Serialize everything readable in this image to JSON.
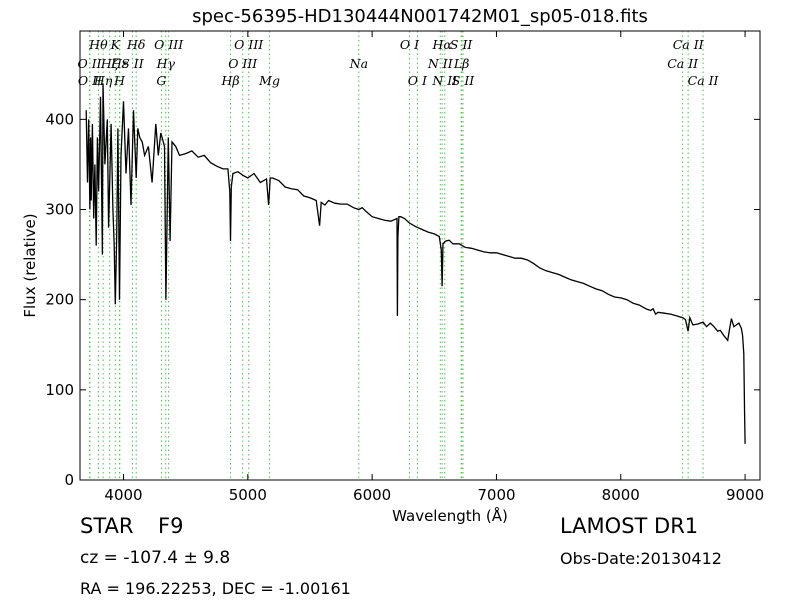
{
  "header": {
    "title": "spec-56395-HD130444N001742M01_sp05-018.fits"
  },
  "info": {
    "object_class": "STAR",
    "subclass": "F9",
    "survey": "LAMOST DR1",
    "redshift_text": "cz = -107.4  ± 9.8",
    "obs_date": "Obs-Date:20130412",
    "coords": "RA = 196.22253, DEC = -1.00161"
  },
  "colors": {
    "spectrum": "#000000",
    "line_markers": "#55bb55"
  },
  "chart_data": {
    "type": "line",
    "xlabel": "Wavelength (Å)",
    "ylabel": "Flux (relative)",
    "xlim": [
      3650,
      9120
    ],
    "ylim": [
      0,
      498
    ],
    "xticks": [
      4000,
      5000,
      6000,
      7000,
      8000,
      9000
    ],
    "yticks": [
      0,
      100,
      200,
      300,
      400
    ],
    "grid": false,
    "series": [
      {
        "x": [
          3700,
          3710,
          3720,
          3730,
          3735,
          3740,
          3750,
          3760,
          3770,
          3780,
          3790,
          3800,
          3815,
          3830,
          3835,
          3850,
          3870,
          3880,
          3889,
          3900,
          3915,
          3925,
          3934,
          3945,
          3955,
          3968,
          3980,
          4000,
          4020,
          4040,
          4060,
          4080,
          4102,
          4115,
          4130,
          4150,
          4170,
          4200,
          4230,
          4260,
          4280,
          4300,
          4330,
          4341,
          4360,
          4375,
          4390,
          4420,
          4450,
          4500,
          4550,
          4600,
          4650,
          4700,
          4750,
          4800,
          4840,
          4855,
          4861,
          4867,
          4880,
          4920,
          4960,
          5000,
          5050,
          5100,
          5150,
          5167,
          5172,
          5180,
          5200,
          5250,
          5300,
          5350,
          5400,
          5450,
          5500,
          5550,
          5577,
          5590,
          5620,
          5650,
          5700,
          5750,
          5800,
          5850,
          5893,
          5920,
          5950,
          6000,
          6050,
          6100,
          6150,
          6200,
          6203,
          6207,
          6215,
          6230,
          6260,
          6300,
          6350,
          6400,
          6450,
          6500,
          6540,
          6556,
          6563,
          6570,
          6590,
          6620,
          6650,
          6700,
          6750,
          6800,
          6850,
          6900,
          6950,
          7000,
          7050,
          7100,
          7150,
          7200,
          7250,
          7300,
          7350,
          7400,
          7450,
          7500,
          7550,
          7600,
          7650,
          7700,
          7750,
          7800,
          7850,
          7900,
          7950,
          8000,
          8050,
          8100,
          8150,
          8200,
          8240,
          8260,
          8280,
          8300,
          8350,
          8400,
          8450,
          8498,
          8520,
          8542,
          8555,
          8580,
          8620,
          8662,
          8690,
          8720,
          8750,
          8780,
          8800,
          8830,
          8860,
          8875,
          8890,
          8910,
          8930,
          8950,
          8970,
          8980,
          8990,
          8995,
          9000
        ],
        "values": [
          410,
          330,
          400,
          300,
          380,
          310,
          395,
          290,
          350,
          260,
          380,
          320,
          425,
          250,
          440,
          350,
          400,
          280,
          330,
          395,
          300,
          260,
          195,
          270,
          390,
          200,
          360,
          420,
          340,
          390,
          305,
          410,
          335,
          390,
          380,
          375,
          360,
          370,
          330,
          395,
          360,
          385,
          370,
          200,
          380,
          265,
          375,
          370,
          360,
          362,
          365,
          358,
          360,
          352,
          348,
          345,
          345,
          320,
          265,
          325,
          340,
          342,
          338,
          335,
          340,
          330,
          334,
          305,
          315,
          335,
          335,
          332,
          325,
          323,
          322,
          315,
          313,
          310,
          282,
          308,
          305,
          310,
          307,
          306,
          306,
          302,
          300,
          302,
          298,
          292,
          290,
          288,
          287,
          290,
          182,
          270,
          292,
          292,
          290,
          285,
          281,
          278,
          275,
          273,
          270,
          255,
          215,
          262,
          265,
          266,
          262,
          262,
          258,
          257,
          255,
          253,
          252,
          252,
          250,
          248,
          246,
          246,
          244,
          240,
          235,
          232,
          230,
          228,
          225,
          222,
          220,
          218,
          215,
          212,
          210,
          206,
          203,
          202,
          200,
          196,
          194,
          190,
          188,
          190,
          184,
          186,
          185,
          184,
          182,
          180,
          178,
          165,
          180,
          172,
          173,
          175,
          170,
          174,
          170,
          165,
          166,
          160,
          155,
          167,
          179,
          170,
          172,
          174,
          168,
          160,
          140,
          80,
          40
        ]
      }
    ],
    "lines": [
      {
        "name": "O II",
        "wave": 3727,
        "row": 2
      },
      {
        "name": "O II",
        "wave": 3730,
        "row": 3
      },
      {
        "name": "Hθ",
        "wave": 3798,
        "row": 1
      },
      {
        "name": "Hη",
        "wave": 3836,
        "row": 3
      },
      {
        "name": "Hζ",
        "wave": 3889,
        "row": 2
      },
      {
        "name": "K",
        "wave": 3934,
        "row": 1
      },
      {
        "name": "Hε",
        "wave": 3970,
        "row": 2
      },
      {
        "name": "H",
        "wave": 3968,
        "row": 3
      },
      {
        "name": "S II",
        "wave": 4072,
        "row": 2
      },
      {
        "name": "Hδ",
        "wave": 4102,
        "row": 1
      },
      {
        "name": "G",
        "wave": 4305,
        "row": 3
      },
      {
        "name": "Hγ",
        "wave": 4340,
        "row": 2
      },
      {
        "name": "O III",
        "wave": 4363,
        "row": 1
      },
      {
        "name": "Hβ",
        "wave": 4861,
        "row": 3
      },
      {
        "name": "O III",
        "wave": 4959,
        "row": 2
      },
      {
        "name": "O III",
        "wave": 5007,
        "row": 1
      },
      {
        "name": "Mg",
        "wave": 5175,
        "row": 3
      },
      {
        "name": "Na",
        "wave": 5893,
        "row": 2
      },
      {
        "name": "O I",
        "wave": 6300,
        "row": 1
      },
      {
        "name": "O I",
        "wave": 6364,
        "row": 3
      },
      {
        "name": "N II",
        "wave": 6548,
        "row": 2
      },
      {
        "name": "N II",
        "wave": 6584,
        "row": 3
      },
      {
        "name": "Hα",
        "wave": 6563,
        "row": 1
      },
      {
        "name": "S II",
        "wave": 6716,
        "row": 1
      },
      {
        "name": "Lβ",
        "wave": 6720,
        "row": 2
      },
      {
        "name": "S II",
        "wave": 6731,
        "row": 3
      },
      {
        "name": "Ca II",
        "wave": 8498,
        "row": 2
      },
      {
        "name": "Ca II",
        "wave": 8542,
        "row": 1
      },
      {
        "name": "Ca II",
        "wave": 8662,
        "row": 3
      }
    ]
  }
}
